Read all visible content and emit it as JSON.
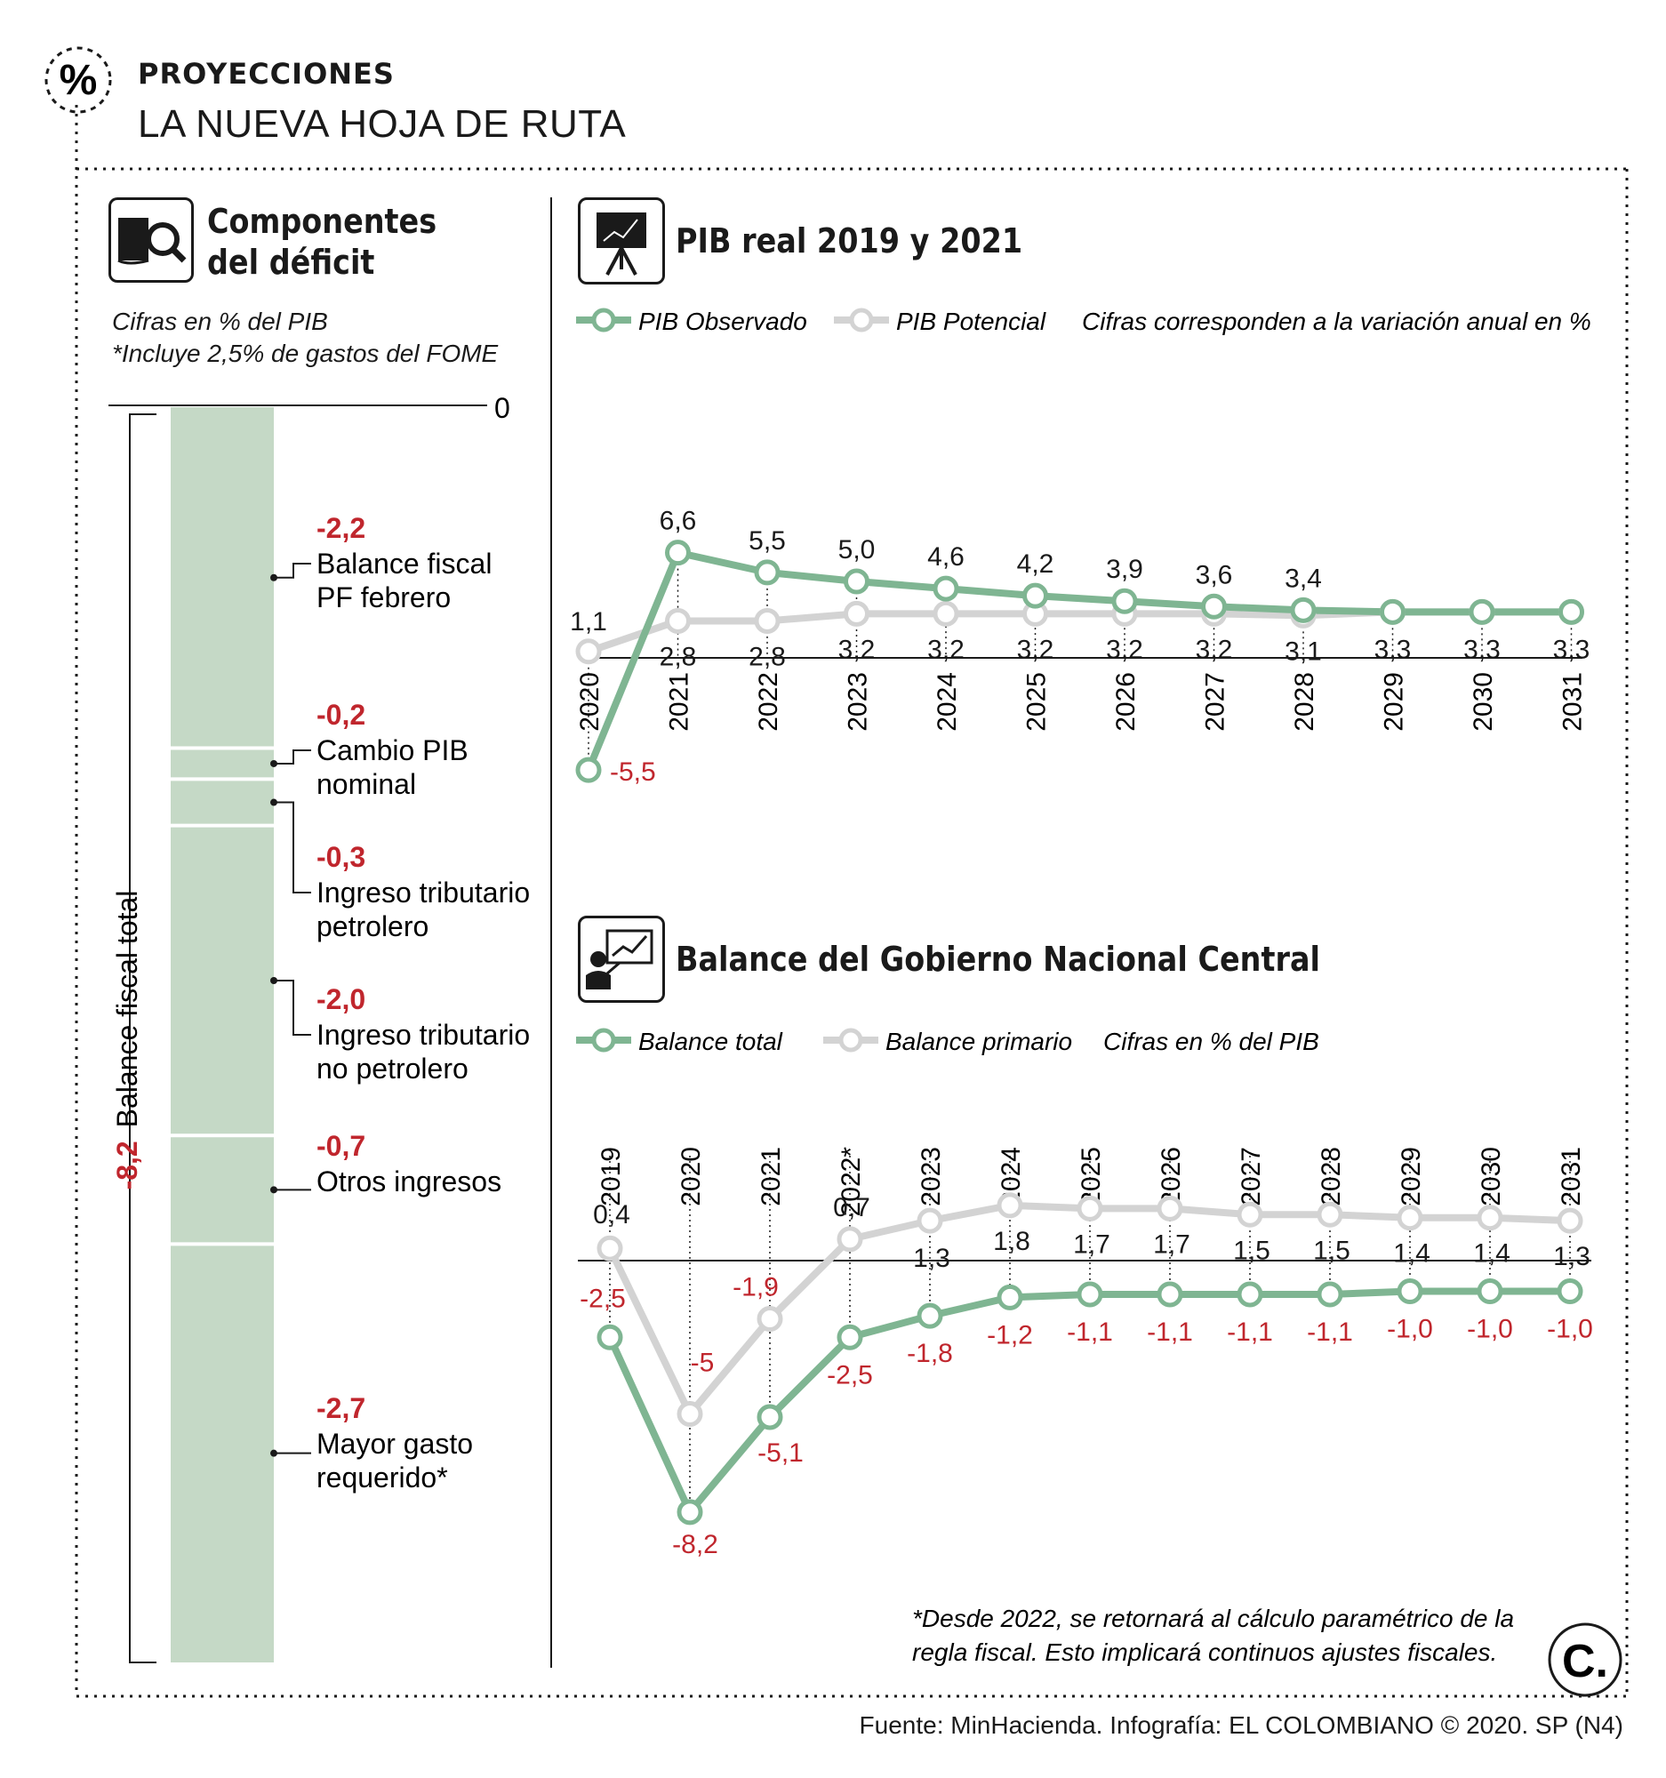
{
  "header": {
    "kicker": "PROYECCIONES",
    "title": "LA NUEVA HOJA DE RUTA",
    "logo_symbol": "%"
  },
  "deficit": {
    "title_line1": "Componentes",
    "title_line2": "del déficit",
    "note1": "Cifras en % del PIB",
    "note2": "*Incluye 2,5% de gastos del FOME",
    "zero_label": "0",
    "total_value": "-8,2",
    "total_label": "Balance fiscal total",
    "bar_color": "#c5d9c6",
    "components": [
      {
        "value": "-2,2",
        "label1": "Balance fiscal",
        "label2": "PF febrero",
        "share": 2.2
      },
      {
        "value": "-0,2",
        "label1": "Cambio PIB",
        "label2": "nominal",
        "share": 0.2
      },
      {
        "value": "-0,3",
        "label1": "Ingreso tributario",
        "label2": "petrolero",
        "share": 0.3
      },
      {
        "value": "-2,0",
        "label1": "Ingreso tributario",
        "label2": "no petrolero",
        "share": 2.0
      },
      {
        "value": "-0,7",
        "label1": "Otros ingresos",
        "label2": "",
        "share": 0.7
      },
      {
        "value": "-2,7",
        "label1": "Mayor gasto",
        "label2": "requerido*",
        "share": 2.7
      }
    ]
  },
  "chart_data": [
    {
      "type": "line",
      "title": "PIB real 2019 y 2021",
      "legend_observed": "PIB Observado",
      "legend_potential": "PIB Potencial",
      "note": "Cifras corresponden a la variación anual en %",
      "x": [
        "2020",
        "2021",
        "2022",
        "2023",
        "2024",
        "2025",
        "2026",
        "2027",
        "2028",
        "2029",
        "2030",
        "2031"
      ],
      "series": [
        {
          "name": "PIB Observado",
          "color": "#7fb592",
          "values": [
            -5.5,
            6.6,
            5.5,
            5.0,
            4.6,
            4.2,
            3.9,
            3.6,
            3.4,
            3.3,
            3.3,
            3.3
          ],
          "labels": [
            "-5,5",
            "6,6",
            "5,5",
            "5,0",
            "4,6",
            "4,2",
            "3,9",
            "3,6",
            "3,4",
            "3,3",
            "3,3",
            "3,3"
          ]
        },
        {
          "name": "PIB Potencial",
          "color": "#d3d3d3",
          "values": [
            1.1,
            2.8,
            2.8,
            3.2,
            3.2,
            3.2,
            3.2,
            3.2,
            3.1,
            3.3,
            3.3,
            3.3
          ],
          "labels": [
            "1,1",
            "2,8",
            "2,8",
            "3,2",
            "3,2",
            "3,2",
            "3,2",
            "3,2",
            "3,1",
            "",
            "",
            ""
          ]
        }
      ],
      "ylim": [
        -5.5,
        6.6
      ]
    },
    {
      "type": "line",
      "title": "Balance del Gobierno Nacional Central",
      "legend_total": "Balance total",
      "legend_primary": "Balance primario",
      "note": "Cifras en % del PIB",
      "x": [
        "2019",
        "2020",
        "2021",
        "2022*",
        "2023",
        "2024",
        "2025",
        "2026",
        "2027",
        "2028",
        "2029",
        "2030",
        "2031"
      ],
      "series": [
        {
          "name": "Balance total",
          "color": "#7fb592",
          "values": [
            -2.5,
            -8.2,
            -5.1,
            -2.5,
            -1.8,
            -1.2,
            -1.1,
            -1.1,
            -1.1,
            -1.1,
            -1.0,
            -1.0,
            -1.0
          ],
          "labels": [
            "-2,5",
            "-8,2",
            "-5,1",
            "-2,5",
            "-1,8",
            "-1,2",
            "-1,1",
            "-1,1",
            "-1,1",
            "-1,1",
            "-1,0",
            "-1,0",
            "-1,0"
          ]
        },
        {
          "name": "Balance primario",
          "color": "#d3d3d3",
          "values": [
            0.4,
            -5.0,
            -1.9,
            0.7,
            1.3,
            1.8,
            1.7,
            1.7,
            1.5,
            1.5,
            1.4,
            1.4,
            1.3
          ],
          "labels": [
            "0,4",
            "-5",
            "-1,9",
            "0,7",
            "1,3",
            "1,8",
            "1,7",
            "1,7",
            "1,5",
            "1,5",
            "1,4",
            "1,4",
            "1,3"
          ]
        }
      ],
      "footnote1": "*Desde 2022, se retornará al cálculo paramétrico de la",
      "footnote2": "regla fiscal. Esto implicará continuos ajustes fiscales.",
      "ylim": [
        -8.2,
        1.8
      ]
    }
  ],
  "footer": {
    "brand_logo": "C.",
    "source": "Fuente: MinHacienda. Infografía: EL COLOMBIANO © 2020. SP (N4)"
  },
  "colors": {
    "green": "#7fb592",
    "grey": "#d3d3d3",
    "red": "#c0262d",
    "bar": "#c5d9c6"
  }
}
